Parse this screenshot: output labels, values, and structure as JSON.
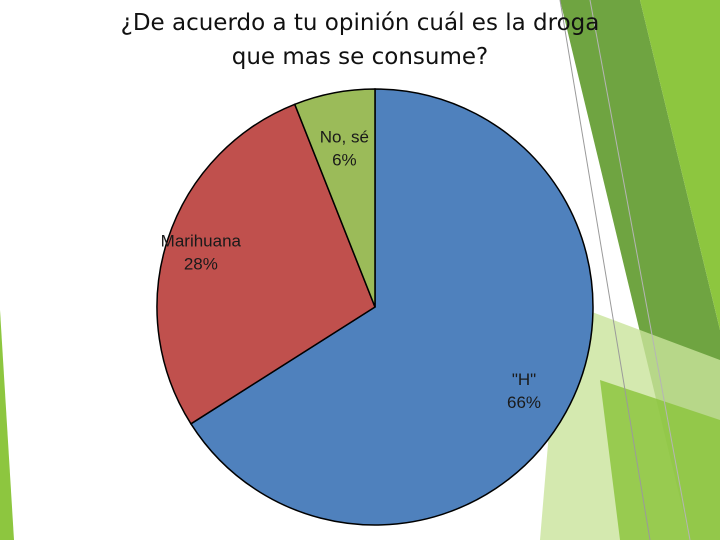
{
  "slide": {
    "title_line1": "¿De acuerdo a tu opinión cuál es la droga",
    "title_line2": "que mas se consume?"
  },
  "theme": {
    "accent_green": "#8dc63f",
    "accent_dark_green": "#5f9a2c",
    "accent_light_green": "#c9e39b"
  },
  "chart_data": {
    "type": "pie",
    "title": "",
    "start_angle_deg": 0,
    "direction": "clockwise",
    "slices": [
      {
        "name": "\"H\"",
        "value": 66,
        "label": "66%",
        "color": "#4f81bd"
      },
      {
        "name": "Marihuana",
        "value": 28,
        "label": "28%",
        "color": "#c0504d"
      },
      {
        "name": "No, sé",
        "value": 6,
        "label": "6%",
        "color": "#9bbb59"
      }
    ]
  }
}
